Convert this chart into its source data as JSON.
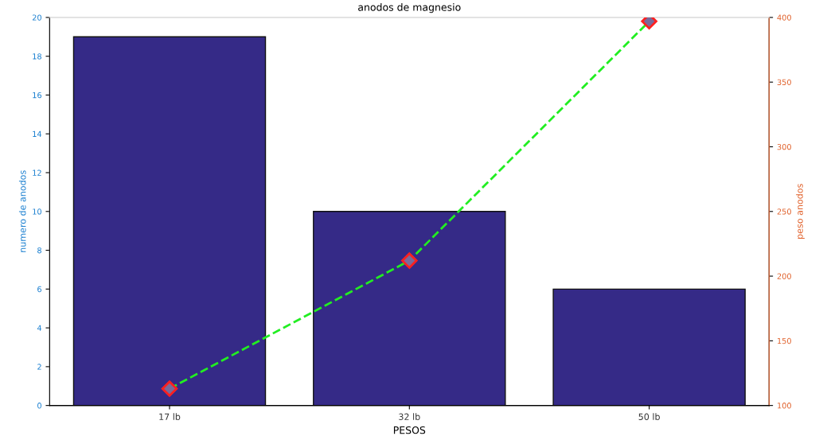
{
  "chart_data": {
    "type": "bar",
    "title": "anodos de magnesio",
    "xlabel": "PESOS",
    "ylabel": "numero de anodos",
    "y2label": "peso anodos",
    "categories": [
      "17 lb",
      "32 lb",
      "50 lb"
    ],
    "series": [
      {
        "color": "#352a87",
        "values": [
          19,
          10,
          6
        ]
      },
      {
        "type": "line",
        "axis": "y2",
        "color": "#22ee22",
        "values": [
          113,
          212,
          397
        ],
        "marker": "diamond",
        "line_style": "dashed"
      }
    ],
    "ylim": [
      0,
      20
    ],
    "yticks": [
      0,
      2,
      4,
      6,
      8,
      10,
      12,
      14,
      16,
      18,
      20
    ],
    "y2lim": [
      100,
      400
    ],
    "y2ticks": [
      100,
      150,
      200,
      250,
      300,
      350,
      400
    ]
  }
}
